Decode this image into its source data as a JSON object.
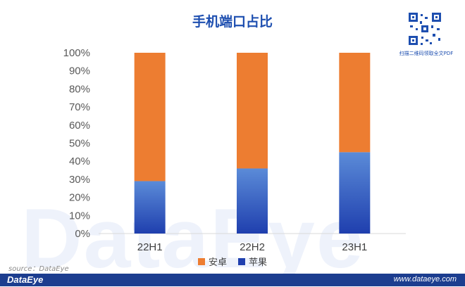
{
  "watermark_text": "DataEye",
  "qr_caption": "扫描二维码领取全文PDF",
  "source_text": "source：DataEye",
  "footer": {
    "logo": "DataEye",
    "url": "www.dataeye.com"
  },
  "colors": {
    "android": "#ED7D31",
    "apple_top": "#5B8BD8",
    "apple_bottom": "#1F3FAE",
    "title": "#1E4FB0",
    "footer": "#1C3D8F"
  },
  "chart_data": {
    "type": "bar",
    "stacked": true,
    "percent": true,
    "title": "手机端口占比",
    "categories": [
      "22H1",
      "22H2",
      "23H1"
    ],
    "y_ticks": [
      "0%",
      "10%",
      "20%",
      "30%",
      "40%",
      "50%",
      "60%",
      "70%",
      "80%",
      "90%",
      "100%"
    ],
    "ylim": [
      0,
      100
    ],
    "grid": false,
    "legend_position": "bottom",
    "series": [
      {
        "name": "苹果",
        "values": [
          29,
          36,
          45
        ]
      },
      {
        "name": "安卓",
        "values": [
          71,
          64,
          55
        ]
      }
    ]
  }
}
